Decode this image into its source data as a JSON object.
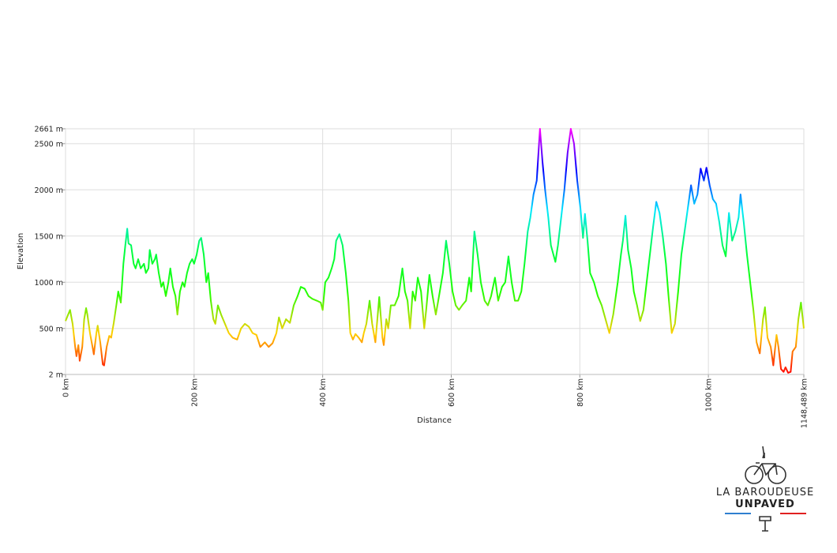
{
  "chart_data": {
    "type": "line",
    "xlabel": "Distance",
    "ylabel": "Elevation",
    "xlim": [
      0,
      1148.489
    ],
    "ylim": [
      2,
      2661
    ],
    "xticks": [
      {
        "value": 0,
        "label": "0 km"
      },
      {
        "value": 200,
        "label": "200 km"
      },
      {
        "value": 400,
        "label": "400 km"
      },
      {
        "value": 600,
        "label": "600 km"
      },
      {
        "value": 800,
        "label": "800 km"
      },
      {
        "value": 1000,
        "label": "1000 km"
      },
      {
        "value": 1148.489,
        "label": "1148,489 km"
      }
    ],
    "yticks": [
      {
        "value": 2,
        "label": "2 m"
      },
      {
        "value": 500,
        "label": "500 m"
      },
      {
        "value": 1000,
        "label": "1000 m"
      },
      {
        "value": 1500,
        "label": "1500 m"
      },
      {
        "value": 2000,
        "label": "2000 m"
      },
      {
        "value": 2500,
        "label": "2500 m"
      },
      {
        "value": 2661,
        "label": "2661 m"
      }
    ],
    "grid": true,
    "colorscale": [
      "#ff0000",
      "#ffd000",
      "#20ff00",
      "#00ff40",
      "#00e8ff",
      "#0000ff",
      "#ff00ff"
    ],
    "x": [
      0,
      4,
      7,
      11,
      15,
      17,
      20,
      22,
      26,
      29,
      32,
      34,
      38,
      42,
      44,
      48,
      50,
      54,
      58,
      60,
      64,
      68,
      71,
      75,
      79,
      82,
      86,
      90,
      93,
      96,
      98,
      102,
      106,
      109,
      113,
      117,
      122,
      125,
      129,
      131,
      135,
      139,
      141,
      145,
      149,
      152,
      156,
      160,
      163,
      167,
      171,
      174,
      178,
      182,
      185,
      189,
      193,
      197,
      200,
      204,
      208,
      211,
      215,
      219,
      222,
      226,
      230,
      233,
      237,
      242,
      248,
      254,
      260,
      267,
      273,
      279,
      285,
      291,
      297,
      303,
      310,
      316,
      322,
      328,
      332,
      337,
      343,
      349,
      355,
      361,
      366,
      372,
      378,
      384,
      391,
      397,
      400,
      404,
      409,
      414,
      418,
      421,
      426,
      431,
      436,
      440,
      443,
      447,
      451,
      456,
      461,
      464,
      468,
      473,
      477,
      482,
      488,
      493,
      495,
      499,
      502,
      506,
      512,
      518,
      524,
      528,
      532,
      536,
      540,
      544,
      548,
      553,
      558,
      561,
      566,
      571,
      576,
      581,
      587,
      592,
      597,
      602,
      607,
      612,
      617,
      623,
      628,
      631,
      636,
      641,
      646,
      652,
      657,
      662,
      668,
      673,
      679,
      684,
      689,
      694,
      699,
      704,
      709,
      714,
      719,
      723,
      728,
      733,
      738,
      742,
      746,
      751,
      755,
      762,
      766,
      771,
      776,
      781,
      786,
      791,
      796,
      801,
      805,
      808,
      812,
      816,
      822,
      828,
      834,
      840,
      846,
      852,
      859,
      864,
      867,
      871,
      875,
      880,
      884,
      889,
      894,
      899,
      904,
      909,
      914,
      919,
      924,
      929,
      934,
      938,
      943,
      948,
      953,
      958,
      963,
      968,
      973,
      978,
      983,
      988,
      993,
      997,
      1002,
      1007,
      1012,
      1017,
      1022,
      1027,
      1032,
      1037,
      1042,
      1047,
      1050,
      1055,
      1060,
      1065,
      1070,
      1075,
      1080,
      1085,
      1088,
      1092,
      1097,
      1101,
      1106,
      1109,
      1113,
      1117,
      1120,
      1124,
      1128,
      1131,
      1136,
      1140,
      1144,
      1148.489
    ],
    "values": [
      580,
      650,
      700,
      550,
      300,
      200,
      320,
      150,
      300,
      600,
      720,
      650,
      450,
      300,
      220,
      450,
      530,
      350,
      110,
      100,
      300,
      420,
      400,
      560,
      750,
      900,
      780,
      1200,
      1400,
      1580,
      1420,
      1400,
      1200,
      1150,
      1250,
      1150,
      1200,
      1100,
      1150,
      1350,
      1200,
      1250,
      1300,
      1100,
      950,
      1000,
      850,
      1000,
      1150,
      950,
      850,
      650,
      900,
      1000,
      950,
      1100,
      1200,
      1250,
      1200,
      1300,
      1450,
      1480,
      1300,
      1000,
      1100,
      800,
      600,
      550,
      750,
      650,
      550,
      450,
      400,
      380,
      500,
      550,
      520,
      450,
      430,
      300,
      350,
      300,
      340,
      450,
      620,
      500,
      600,
      560,
      750,
      850,
      950,
      930,
      850,
      820,
      800,
      780,
      700,
      1000,
      1050,
      1150,
      1250,
      1450,
      1520,
      1400,
      1100,
      800,
      450,
      380,
      440,
      400,
      350,
      450,
      550,
      800,
      550,
      350,
      840,
      400,
      320,
      600,
      500,
      750,
      750,
      850,
      1150,
      900,
      800,
      500,
      900,
      800,
      1050,
      900,
      500,
      700,
      1080,
      850,
      650,
      850,
      1100,
      1450,
      1200,
      900,
      750,
      700,
      750,
      800,
      1050,
      900,
      1550,
      1300,
      1000,
      800,
      750,
      850,
      1050,
      800,
      950,
      1000,
      1280,
      1000,
      800,
      800,
      900,
      1200,
      1550,
      1700,
      1950,
      2100,
      2661,
      2300,
      2000,
      1700,
      1400,
      1220,
      1400,
      1700,
      2000,
      2400,
      2661,
      2500,
      2100,
      1800,
      1480,
      1740,
      1450,
      1100,
      1000,
      850,
      750,
      600,
      450,
      650,
      1000,
      1300,
      1450,
      1720,
      1350,
      1150,
      900,
      750,
      580,
      700,
      1000,
      1300,
      1600,
      1870,
      1750,
      1500,
      1200,
      850,
      450,
      550,
      900,
      1300,
      1550,
      1800,
      2050,
      1850,
      1950,
      2230,
      2100,
      2240,
      2050,
      1900,
      1850,
      1650,
      1400,
      1280,
      1750,
      1450,
      1550,
      1700,
      1950,
      1650,
      1300,
      1000,
      700,
      350,
      230,
      600,
      730,
      400,
      300,
      100,
      430,
      300,
      60,
      30,
      80,
      20,
      30,
      250,
      300,
      600,
      780,
      500
    ]
  },
  "logo": {
    "name": "LA BAROUDEUSE",
    "tagline": "UNPAVED"
  }
}
